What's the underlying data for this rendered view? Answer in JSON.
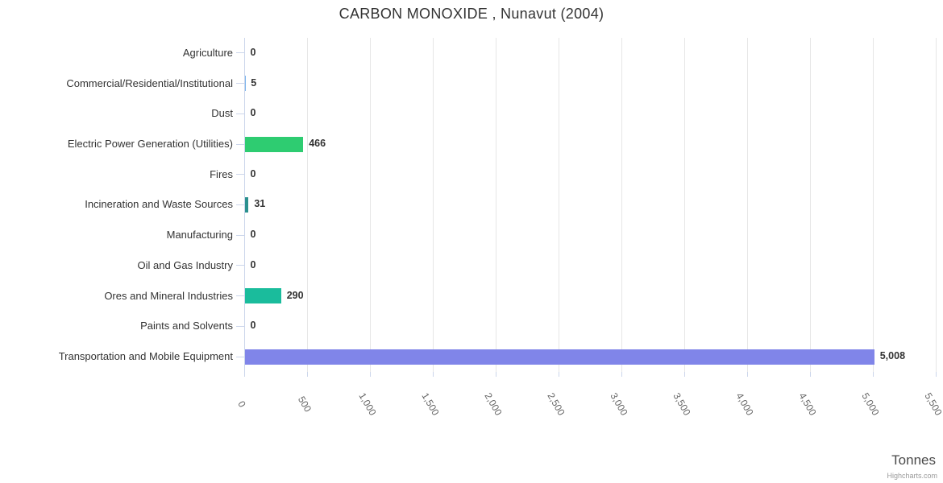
{
  "chart": {
    "title": "CARBON MONOXIDE , Nunavut (2004)",
    "x_axis_title": "Tonnes",
    "credit": "Highcharts.com"
  },
  "chart_data": {
    "type": "bar",
    "orientation": "horizontal",
    "title": "CARBON MONOXIDE , Nunavut (2004)",
    "xlabel": "Tonnes",
    "ylabel": "",
    "legend": false,
    "grid": true,
    "xlim": [
      0,
      5500
    ],
    "xticks": [
      0,
      500,
      1000,
      1500,
      2000,
      2500,
      3000,
      3500,
      4000,
      4500,
      5000,
      5500
    ],
    "xtick_labels": [
      "0",
      "500",
      "1,000",
      "1,500",
      "2,000",
      "2,500",
      "3,000",
      "3,500",
      "4,000",
      "4,500",
      "5,000",
      "5,500"
    ],
    "categories": [
      "Agriculture",
      "Commercial/Residential/Institutional",
      "Dust",
      "Electric Power Generation (Utilities)",
      "Fires",
      "Incineration and Waste Sources",
      "Manufacturing",
      "Oil and Gas Industry",
      "Ores and Mineral Industries",
      "Paints and Solvents",
      "Transportation and Mobile Equipment"
    ],
    "values": [
      0,
      5,
      0,
      466,
      0,
      31,
      0,
      0,
      290,
      0,
      5008
    ],
    "value_labels": [
      "0",
      "5",
      "0",
      "466",
      "0",
      "31",
      "0",
      "0",
      "290",
      "0",
      "5,008"
    ],
    "point_colors": [
      "#7cb5ec",
      "#7cb5ec",
      "#7cb5ec",
      "#2ecc71",
      "#7cb5ec",
      "#2b908f",
      "#7cb5ec",
      "#7cb5ec",
      "#1abc9c",
      "#7cb5ec",
      "#8085e9"
    ]
  },
  "colors": {
    "grid": "#e6e6e6",
    "axis": "#ccd6eb",
    "category_label": "#333333",
    "tick_label": "#666666",
    "value_label": "#333333",
    "title": "#333333",
    "credit": "#999999"
  }
}
